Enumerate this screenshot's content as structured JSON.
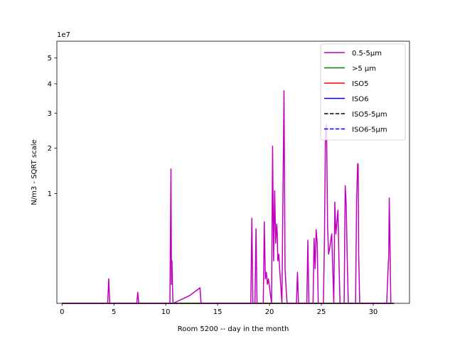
{
  "chart_data": {
    "type": "line",
    "title": "",
    "xlabel": "Room 5200 -- day in the month",
    "ylabel": "N/m3 - SQRT scale",
    "y_scale": "sqrt",
    "y_offset_label": "1e7",
    "xlim": [
      -0.5,
      33.5
    ],
    "ylim": [
      0,
      57000000
    ],
    "x_ticks": [
      0,
      5,
      10,
      15,
      20,
      25,
      30
    ],
    "y_ticks": [
      {
        "value": 10000000,
        "label": "1"
      },
      {
        "value": 20000000,
        "label": "2"
      },
      {
        "value": 30000000,
        "label": "3"
      },
      {
        "value": 40000000,
        "label": "4"
      },
      {
        "value": 50000000,
        "label": "5"
      }
    ],
    "grid": false,
    "legend_position": "upper right",
    "series": [
      {
        "name": "0.5-5µm",
        "color": "#bf00bf",
        "dash": "solid",
        "x": [
          0,
          4.4,
          4.5,
          4.6,
          7.2,
          7.3,
          7.4,
          10.4,
          10.5,
          10.55,
          10.6,
          10.65,
          10.7,
          12.3,
          13.3,
          13.4,
          13.5,
          18.2,
          18.3,
          18.4,
          18.6,
          18.7,
          18.8,
          19.4,
          19.5,
          19.6,
          19.7,
          19.8,
          19.9,
          20.2,
          20.3,
          20.35,
          20.4,
          20.5,
          20.6,
          20.7,
          20.75,
          20.8,
          20.9,
          21.0,
          21.2,
          21.3,
          21.4,
          21.5,
          21.6,
          21.7,
          21.8,
          22.6,
          22.7,
          22.8,
          23.6,
          23.7,
          23.8,
          24.2,
          24.3,
          24.4,
          24.5,
          24.6,
          24.7,
          25.2,
          25.3,
          25.4,
          25.5,
          25.6,
          25.7,
          25.8,
          26.0,
          26.2,
          26.3,
          26.4,
          26.6,
          26.7,
          26.8,
          27.2,
          27.3,
          27.4,
          27.5,
          27.6,
          28.3,
          28.4,
          28.5,
          28.55,
          28.6,
          28.7,
          31.3,
          31.4,
          31.5,
          31.55,
          31.6,
          31.7,
          32.0
        ],
        "y": [
          0,
          0,
          500000,
          0,
          0,
          100000,
          0,
          0,
          15000000,
          300000,
          1500000,
          200000,
          0,
          50000,
          200000,
          0,
          0,
          0,
          6000000,
          0,
          0,
          4600000,
          0,
          0,
          5500000,
          500000,
          800000,
          300000,
          500000,
          0,
          20500000,
          8000000,
          1500000,
          10500000,
          3000000,
          5200000,
          4000000,
          1500000,
          2000000,
          800000,
          0,
          9800000,
          37500000,
          1000000,
          200000,
          0,
          0,
          0,
          800000,
          0,
          0,
          3300000,
          0,
          0,
          3500000,
          1000000,
          4500000,
          3000000,
          0,
          0,
          3400000,
          25000000,
          26500000,
          5000000,
          2000000,
          2500000,
          4000000,
          0,
          8500000,
          4000000,
          7200000,
          1500000,
          0,
          0,
          11500000,
          8000000,
          1500000,
          0,
          0,
          8800000,
          16200000,
          16000000,
          2000000,
          0,
          0,
          500000,
          2000000,
          9200000,
          4500000,
          0,
          0
        ]
      },
      {
        "name": ">5 µm",
        "color": "#008000",
        "dash": "solid",
        "x": [
          0,
          32
        ],
        "y": [
          0,
          0
        ]
      },
      {
        "name": "ISO5",
        "color": "#ff0000",
        "dash": "solid",
        "x": [
          0,
          32
        ],
        "y": [
          0,
          0
        ]
      },
      {
        "name": "ISO6",
        "color": "#0000ff",
        "dash": "solid",
        "x": [
          0,
          32
        ],
        "y": [
          0,
          0
        ]
      },
      {
        "name": "ISO5-5µm",
        "color": "#000000",
        "dash": "dashed",
        "x": [
          0,
          32
        ],
        "y": [
          0,
          0
        ]
      },
      {
        "name": "ISO6-5µm",
        "color": "#0000ff",
        "dash": "dashed",
        "x": [
          0,
          32
        ],
        "y": [
          0,
          0
        ]
      }
    ]
  }
}
